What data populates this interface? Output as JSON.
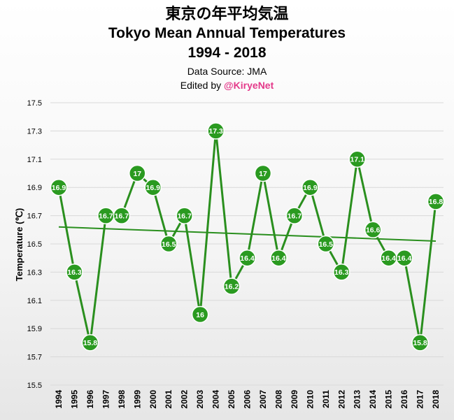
{
  "titles": {
    "jp": "東京の年平均気温",
    "en": "Tokyo Mean Annual Temperatures",
    "years": "1994 - 2018",
    "source": "Data Source: JMA",
    "edited_prefix": "Edited by ",
    "edited_handle": "@KiryeNet"
  },
  "colors": {
    "line": "#2a8f1e",
    "marker": "#2a9a20",
    "marker_stroke": "#ffffff",
    "trend": "#2a8f1e",
    "grid": "#d9d9d9",
    "handle": "#e4398a"
  },
  "chart_data": {
    "type": "line",
    "title": "Tokyo Mean Annual Temperatures",
    "ylabel": "Temperature (℃)",
    "xlabel": "",
    "ylim": [
      15.5,
      17.5
    ],
    "yticks": [
      "15.5",
      "15.7",
      "15.9",
      "16.1",
      "16.3",
      "16.5",
      "16.7",
      "16.9",
      "17.1",
      "17.3",
      "17.5"
    ],
    "grid": true,
    "categories": [
      "1994",
      "1995",
      "1996",
      "1997",
      "1998",
      "1999",
      "2000",
      "2001",
      "2002",
      "2003",
      "2004",
      "2005",
      "2006",
      "2007",
      "2008",
      "2009",
      "2010",
      "2011",
      "2012",
      "2013",
      "2014",
      "2015",
      "2016",
      "2017",
      "2018"
    ],
    "values": [
      16.9,
      16.3,
      15.8,
      16.7,
      16.7,
      17.0,
      16.9,
      16.5,
      16.7,
      16.0,
      17.3,
      16.2,
      16.4,
      17.0,
      16.4,
      16.7,
      16.9,
      16.5,
      16.3,
      17.1,
      16.6,
      16.4,
      16.4,
      15.8,
      16.8
    ],
    "data_labels": [
      "16.9",
      "16.3",
      "15.8",
      "16.7",
      "16.7",
      "17",
      "16.9",
      "16.5",
      "16.7",
      "16",
      "17.3",
      "16.2",
      "16.4",
      "17",
      "16.4",
      "16.7",
      "16.9",
      "16.5",
      "16.3",
      "17.1",
      "16.6",
      "16.4",
      "16.4",
      "15.8",
      "16.8"
    ],
    "trendline": {
      "type": "linear",
      "start": 16.62,
      "end": 16.52
    }
  }
}
